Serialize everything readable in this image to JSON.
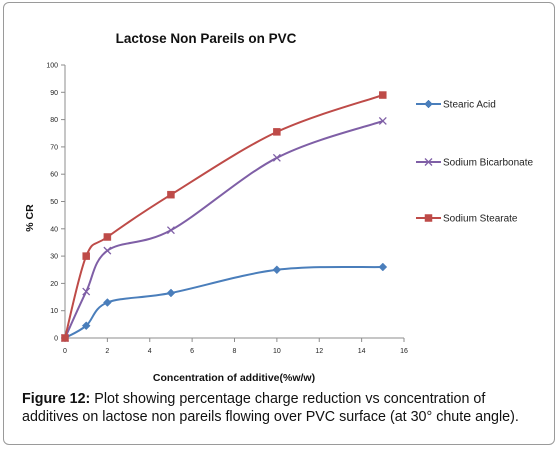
{
  "chart_data": {
    "type": "line",
    "title": "Lactose Non Pareils on PVC",
    "xlabel": "Concentration of additive(%w/w)",
    "ylabel": "% CR",
    "xlim": [
      0,
      16
    ],
    "ylim": [
      0,
      100
    ],
    "x_ticks": [
      "0",
      "2",
      "4",
      "6",
      "8",
      "10",
      "12",
      "14",
      "16"
    ],
    "y_ticks": [
      "0",
      "10",
      "20",
      "30",
      "40",
      "50",
      "60",
      "70",
      "80",
      "90",
      "100"
    ],
    "x": [
      0,
      1,
      2,
      5,
      10,
      15
    ],
    "series": [
      {
        "name": "Stearic Acid",
        "color": "#4a7ebb",
        "marker": "diamond",
        "values": [
          0,
          4.5,
          13,
          16.5,
          25,
          26
        ]
      },
      {
        "name": "Sodium Bicarbonate",
        "color": "#7f5fa6",
        "marker": "x",
        "values": [
          0,
          17,
          32,
          39.5,
          66,
          79.5
        ]
      },
      {
        "name": "Sodium Stearate",
        "color": "#be4b48",
        "marker": "square",
        "values": [
          0,
          30,
          37,
          52.5,
          75.5,
          89
        ]
      }
    ],
    "legend_position": "right",
    "grid": false
  },
  "caption": {
    "label": "Figure 12:",
    "text": " Plot showing percentage charge reduction vs concentration of additives on lactose non pareils flowing over PVC surface (at 30° chute angle)."
  }
}
